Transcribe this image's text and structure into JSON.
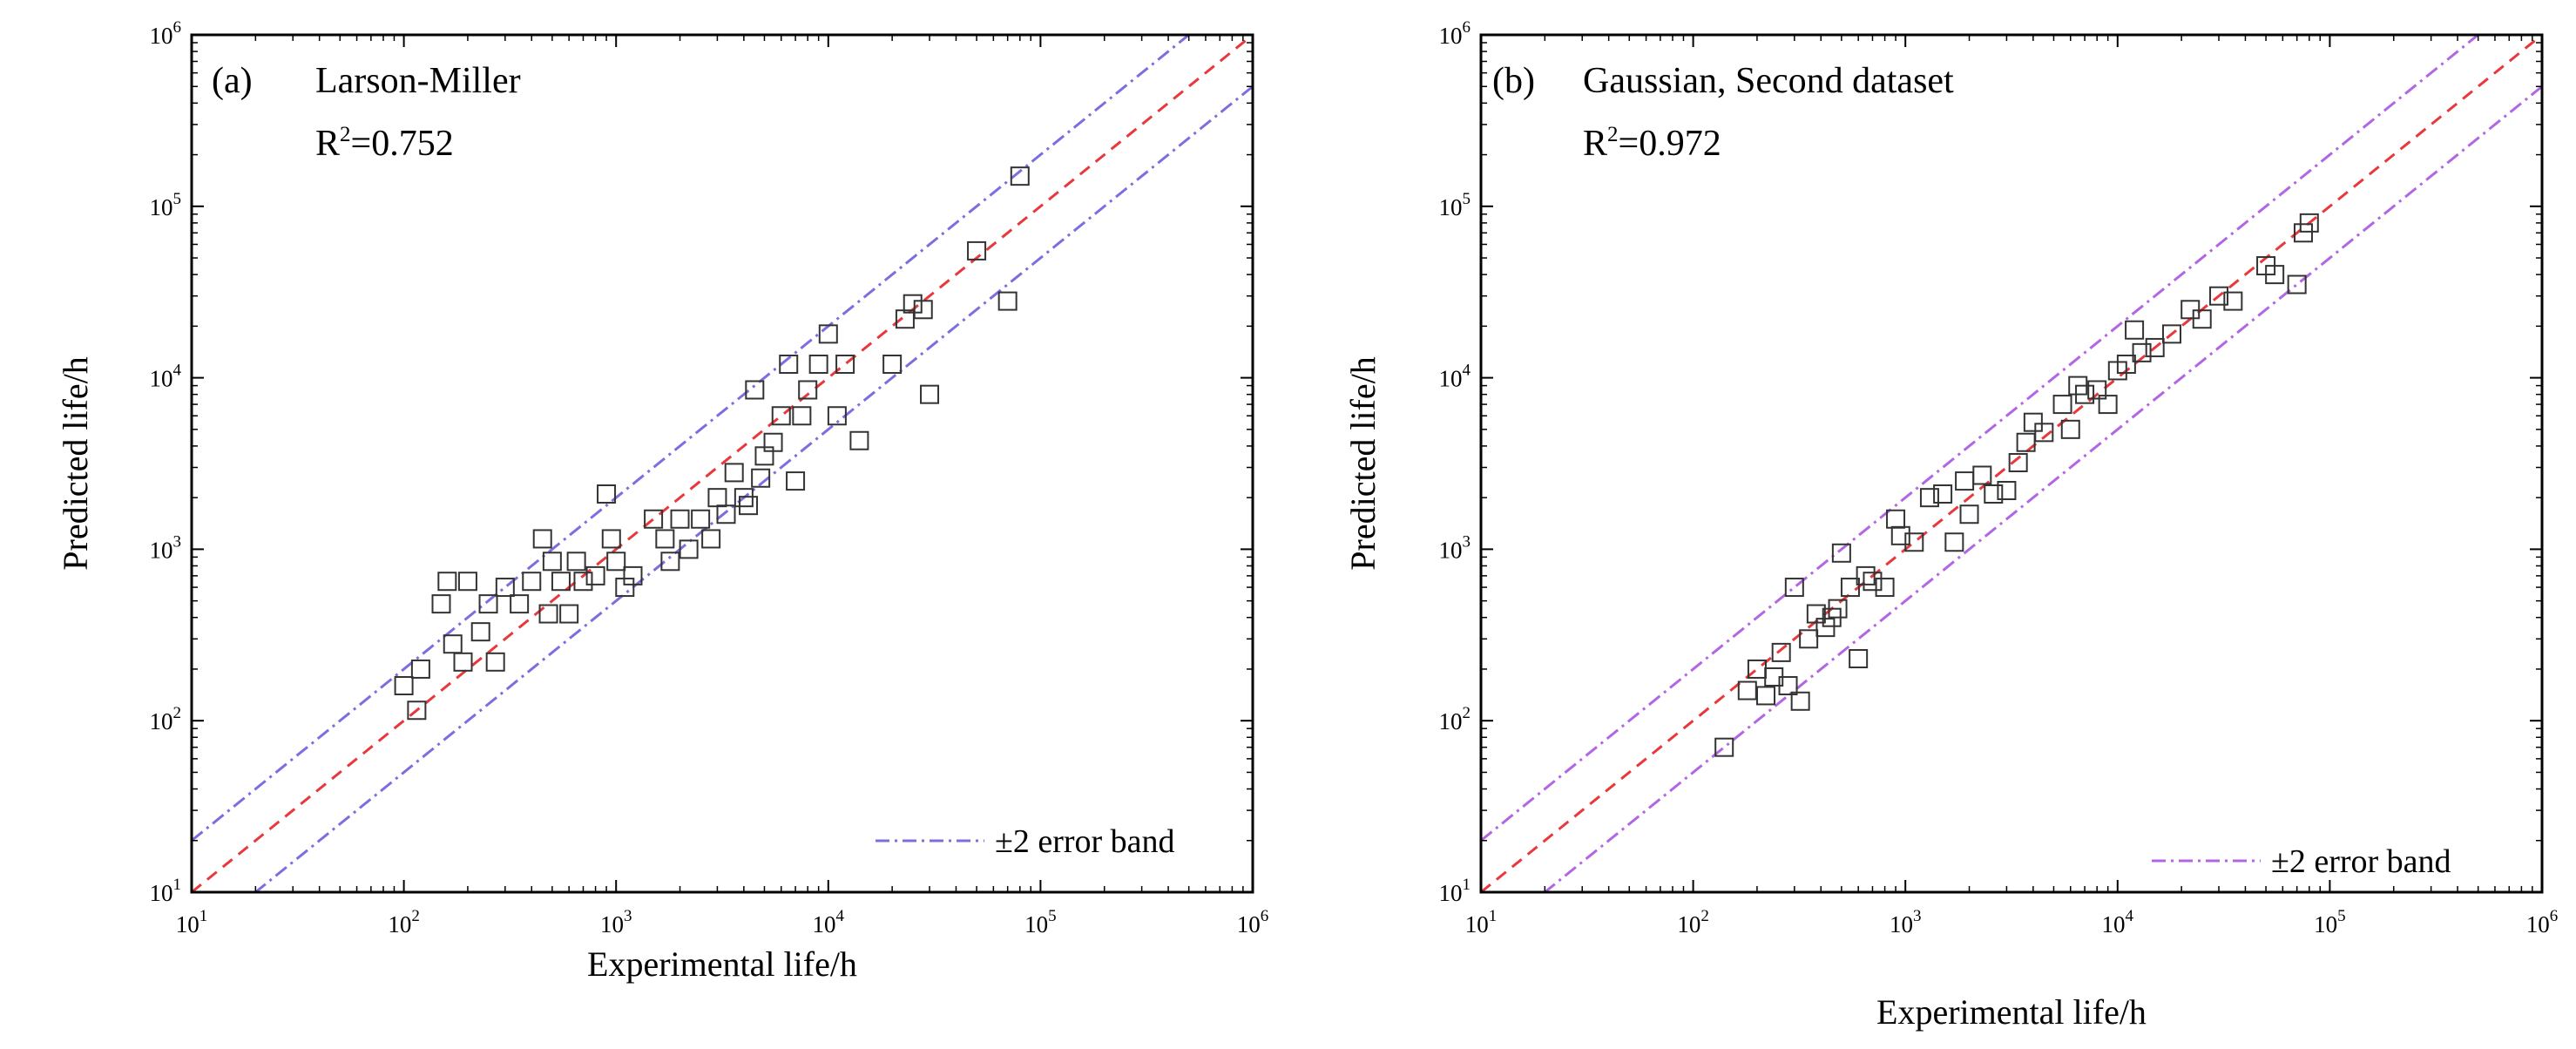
{
  "chart_data": [
    {
      "type": "scatter",
      "panel_label": "(a)",
      "model": "Larson-Miller",
      "r2_prefix": "R",
      "r2_sup": "2",
      "r2_value": "=0.752",
      "xlabel": "Experimental life/h",
      "ylabel": "Predicted life/h",
      "scale": "log",
      "xlim": [
        10,
        1000000
      ],
      "ylim": [
        10,
        1000000
      ],
      "tick_base": "10",
      "tick_exponents": [
        "1",
        "2",
        "3",
        "4",
        "5",
        "6"
      ],
      "legend": {
        "label": "±2 error band",
        "position": "bottom-right"
      },
      "colors": {
        "identity": "#e8383c",
        "band": "#7b6fe0",
        "marker": "#333333"
      },
      "lines": {
        "identity_factor": 1,
        "band_factors": [
          2,
          0.5
        ]
      },
      "points": [
        [
          100,
          160
        ],
        [
          115,
          115
        ],
        [
          120,
          200
        ],
        [
          150,
          480
        ],
        [
          160,
          650
        ],
        [
          170,
          280
        ],
        [
          190,
          220
        ],
        [
          200,
          650
        ],
        [
          230,
          330
        ],
        [
          250,
          480
        ],
        [
          270,
          220
        ],
        [
          300,
          600
        ],
        [
          350,
          480
        ],
        [
          400,
          650
        ],
        [
          450,
          1150
        ],
        [
          480,
          420
        ],
        [
          500,
          850
        ],
        [
          550,
          650
        ],
        [
          600,
          420
        ],
        [
          650,
          850
        ],
        [
          700,
          650
        ],
        [
          800,
          700
        ],
        [
          900,
          2100
        ],
        [
          950,
          1150
        ],
        [
          1000,
          850
        ],
        [
          1100,
          600
        ],
        [
          1200,
          700
        ],
        [
          1500,
          1500
        ],
        [
          1700,
          1150
        ],
        [
          1800,
          850
        ],
        [
          2000,
          1500
        ],
        [
          2200,
          1000
        ],
        [
          2500,
          1500
        ],
        [
          2800,
          1150
        ],
        [
          3000,
          2000
        ],
        [
          3300,
          1600
        ],
        [
          3600,
          2800
        ],
        [
          4000,
          2000
        ],
        [
          4200,
          1800
        ],
        [
          4500,
          8500
        ],
        [
          4800,
          2600
        ],
        [
          5000,
          3500
        ],
        [
          5500,
          4200
        ],
        [
          6000,
          6000
        ],
        [
          6500,
          12000
        ],
        [
          7000,
          2500
        ],
        [
          7500,
          6000
        ],
        [
          8000,
          8500
        ],
        [
          9000,
          12000
        ],
        [
          10000,
          18000
        ],
        [
          11000,
          6000
        ],
        [
          12000,
          12000
        ],
        [
          14000,
          4300
        ],
        [
          20000,
          12000
        ],
        [
          23000,
          22000
        ],
        [
          25000,
          27000
        ],
        [
          28000,
          25000
        ],
        [
          30000,
          8000
        ],
        [
          50000,
          55000
        ],
        [
          70000,
          28000
        ],
        [
          80000,
          150000
        ]
      ]
    },
    {
      "type": "scatter",
      "panel_label": "(b)",
      "model": "Gaussian, Second dataset",
      "r2_prefix": "R",
      "r2_sup": "2",
      "r2_value": "=0.972",
      "xlabel": "Experimental life/h",
      "ylabel": "Predicted life/h",
      "scale": "log",
      "xlim": [
        10,
        1000000
      ],
      "ylim": [
        10,
        1000000
      ],
      "tick_base": "10",
      "tick_exponents": [
        "1",
        "2",
        "3",
        "4",
        "5",
        "6"
      ],
      "legend": {
        "label": "±2 error band",
        "position": "bottom-right"
      },
      "colors": {
        "identity": "#e8383c",
        "band": "#b266e3",
        "marker": "#333333"
      },
      "lines": {
        "identity_factor": 1,
        "band_factors": [
          2,
          0.5
        ]
      },
      "points": [
        [
          140,
          70
        ],
        [
          180,
          150
        ],
        [
          200,
          200
        ],
        [
          220,
          140
        ],
        [
          240,
          180
        ],
        [
          260,
          250
        ],
        [
          280,
          160
        ],
        [
          300,
          600
        ],
        [
          320,
          130
        ],
        [
          350,
          300
        ],
        [
          380,
          420
        ],
        [
          420,
          350
        ],
        [
          450,
          400
        ],
        [
          480,
          450
        ],
        [
          500,
          950
        ],
        [
          550,
          600
        ],
        [
          600,
          230
        ],
        [
          650,
          700
        ],
        [
          700,
          650
        ],
        [
          800,
          600
        ],
        [
          900,
          1500
        ],
        [
          950,
          1200
        ],
        [
          1100,
          1100
        ],
        [
          1300,
          2000
        ],
        [
          1500,
          2100
        ],
        [
          1700,
          1100
        ],
        [
          1900,
          2500
        ],
        [
          2000,
          1600
        ],
        [
          2300,
          2700
        ],
        [
          2600,
          2100
        ],
        [
          3000,
          2200
        ],
        [
          3400,
          3200
        ],
        [
          3700,
          4200
        ],
        [
          4000,
          5500
        ],
        [
          4500,
          4800
        ],
        [
          5500,
          7000
        ],
        [
          6000,
          5000
        ],
        [
          6500,
          9000
        ],
        [
          7000,
          8000
        ],
        [
          8000,
          8500
        ],
        [
          9000,
          7000
        ],
        [
          10000,
          11000
        ],
        [
          11000,
          12000
        ],
        [
          12000,
          19000
        ],
        [
          13000,
          14000
        ],
        [
          15000,
          15000
        ],
        [
          18000,
          18000
        ],
        [
          22000,
          25000
        ],
        [
          25000,
          22000
        ],
        [
          30000,
          30000
        ],
        [
          35000,
          28000
        ],
        [
          50000,
          45000
        ],
        [
          55000,
          40000
        ],
        [
          70000,
          35000
        ],
        [
          75000,
          70000
        ],
        [
          80000,
          80000
        ]
      ]
    }
  ]
}
